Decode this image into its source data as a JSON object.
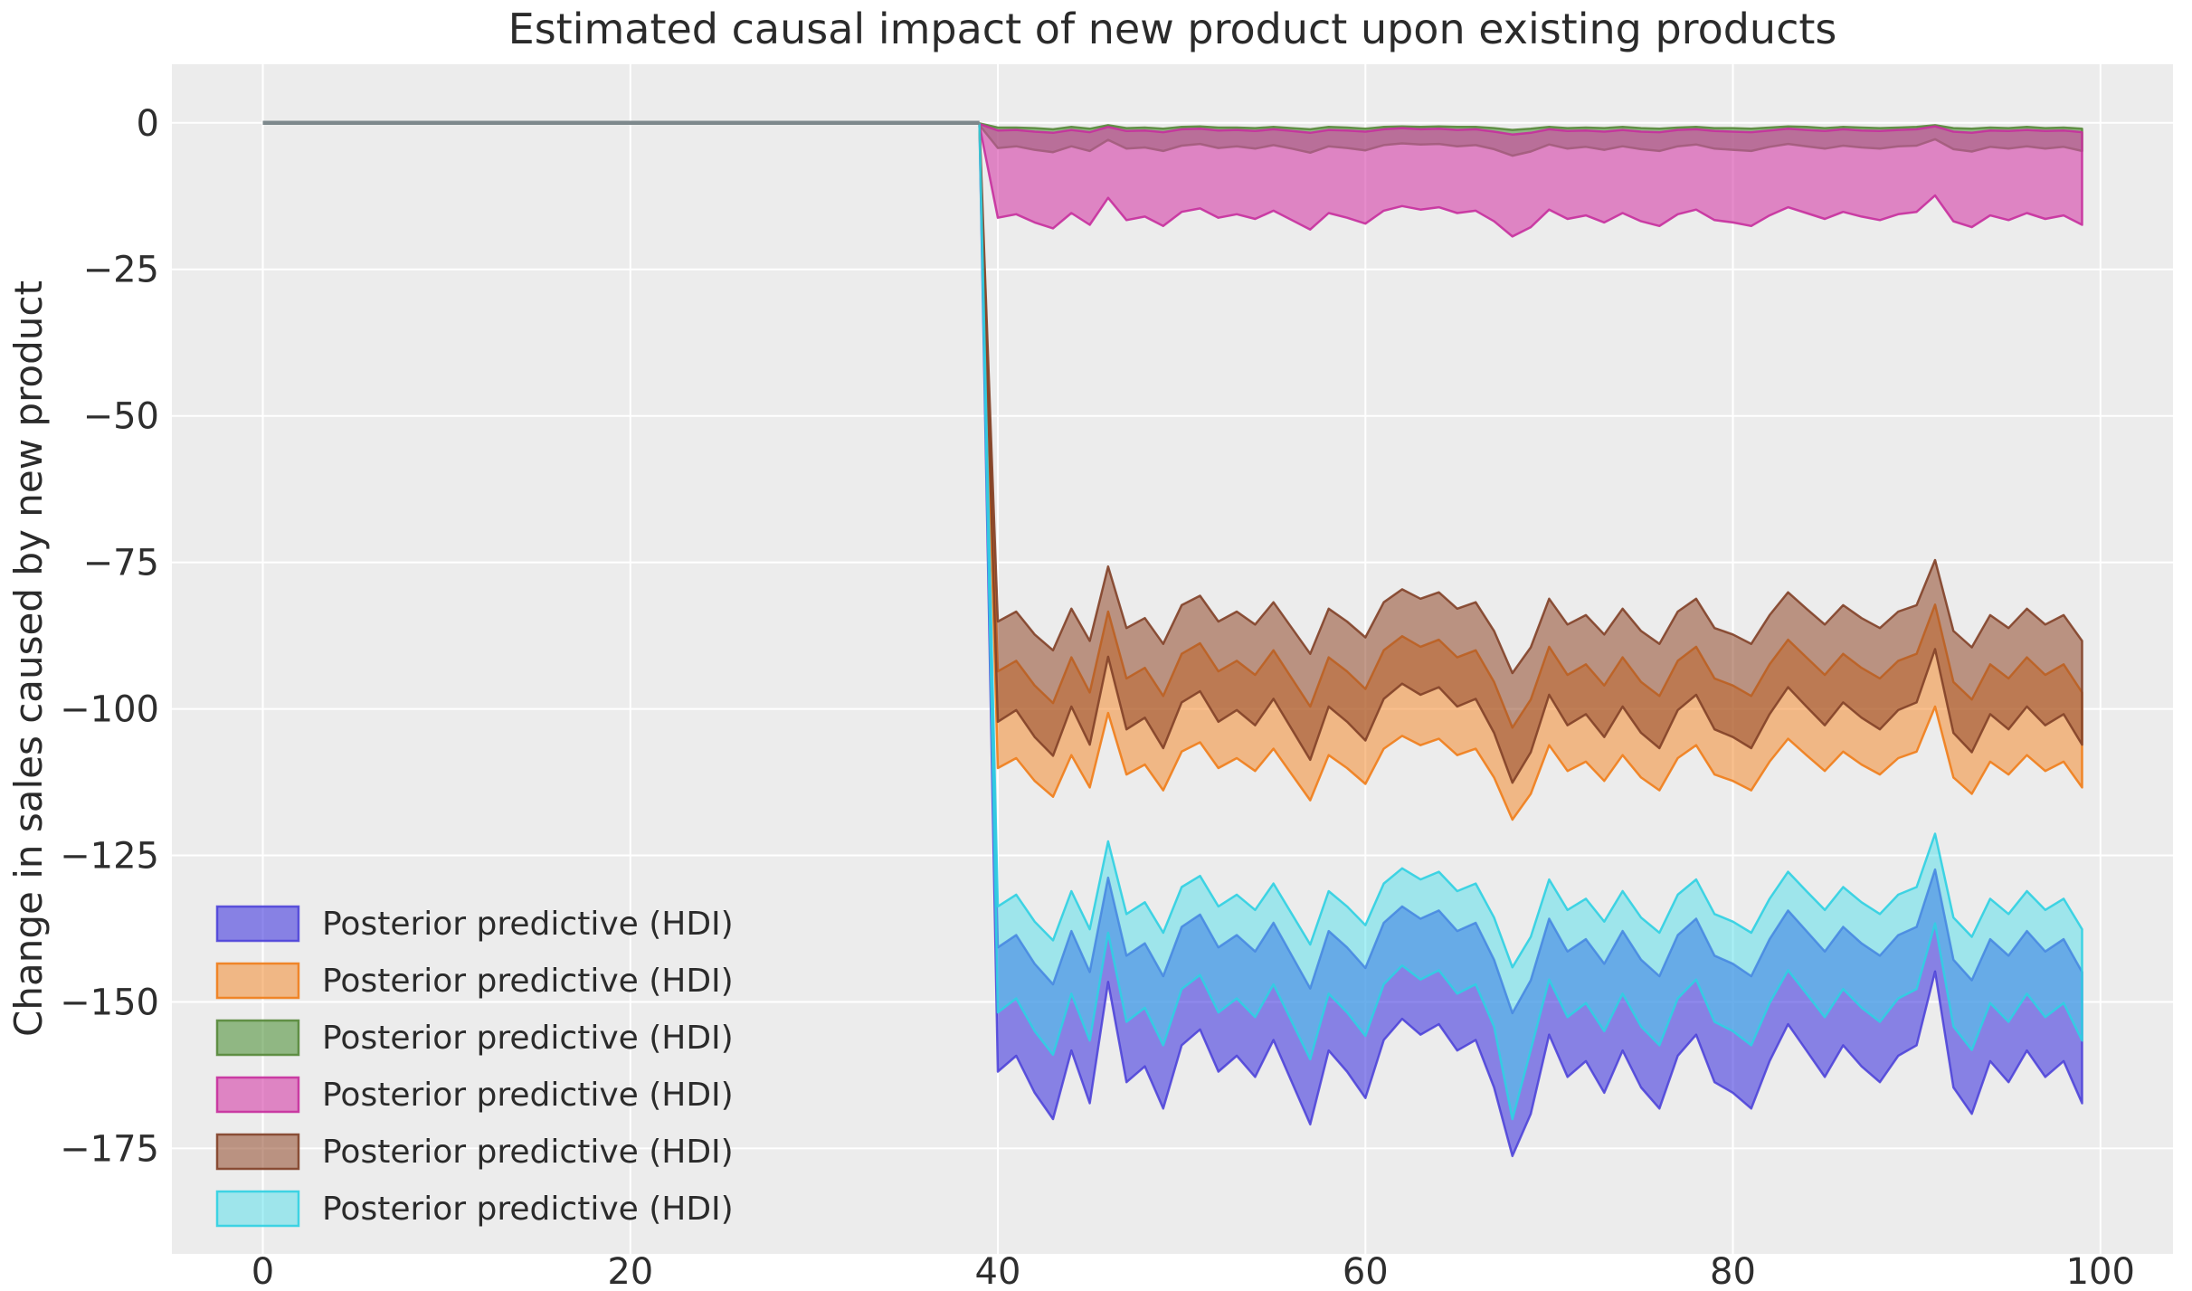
{
  "figure": {
    "background": "#ffffff",
    "axes_background": "#ececec",
    "grid_color": "#ffffff",
    "title_color": "#2b2b2b",
    "tick_color": "#2e2e2e"
  },
  "chart_data": {
    "type": "area",
    "title": "Estimated causal impact of new product upon existing products",
    "xlabel": "",
    "ylabel": "Change in sales caused by new product",
    "xlim": [
      -4.95,
      103.95
    ],
    "ylim": [
      -193,
      10
    ],
    "grid": true,
    "legend_position": "lower-left",
    "xticks": [
      0,
      20,
      40,
      60,
      80,
      100
    ],
    "xtick_labels": [
      "0",
      "20",
      "40",
      "60",
      "80",
      "100"
    ],
    "yticks": [
      0,
      -25,
      -50,
      -75,
      -100,
      -125,
      -150,
      -175
    ],
    "ytick_labels": [
      "0",
      "−25",
      "−50",
      "−75",
      "−100",
      "−125",
      "−150",
      "−175"
    ],
    "pre_period_line": {
      "x_start": 0,
      "x_end": 39,
      "y": 0,
      "color": "#7d888c",
      "width": 4.5
    },
    "treatment_index": 39,
    "x": [
      40,
      41,
      42,
      43,
      44,
      45,
      46,
      47,
      48,
      49,
      50,
      51,
      52,
      53,
      54,
      55,
      56,
      57,
      58,
      59,
      60,
      61,
      62,
      63,
      64,
      65,
      66,
      67,
      68,
      69,
      70,
      71,
      72,
      73,
      74,
      75,
      76,
      77,
      78,
      79,
      80,
      81,
      82,
      83,
      84,
      85,
      86,
      87,
      88,
      89,
      90,
      91,
      92,
      93,
      94,
      95,
      96,
      97,
      98,
      99
    ],
    "series": [
      {
        "name": "Posterior predictive (HDI)",
        "color_key": "purple",
        "fill": "rgba(68,58,223,0.60)",
        "edge": "rgba(73,62,216,0.85)",
        "pre_junction": {
          "x": 39,
          "upper": -0.2,
          "lower": -0.6
        },
        "upper": [
          -140.7,
          -138.6,
          -143.5,
          -147,
          -137.9,
          -144.9,
          -128.8,
          -142.1,
          -140,
          -145.6,
          -137.2,
          -135.1,
          -140.7,
          -138.6,
          -141.4,
          -136.5,
          -142.1,
          -147.7,
          -137.9,
          -140.7,
          -144.2,
          -136.5,
          -133.7,
          -135.8,
          -134.4,
          -137.9,
          -136.5,
          -142.8,
          -151.9,
          -146.3,
          -135.8,
          -141.4,
          -139.3,
          -143.5,
          -137.9,
          -142.8,
          -145.6,
          -138.6,
          -135.8,
          -142.1,
          -143.5,
          -145.6,
          -139.3,
          -134.4,
          -137.9,
          -141.4,
          -137.2,
          -140,
          -142.1,
          -138.6,
          -137.2,
          -127.4,
          -142.8,
          -146.3,
          -139.3,
          -142.1,
          -137.9,
          -141.4,
          -139.3,
          -144.9
        ],
        "lower": [
          -161.9,
          -159.2,
          -165.5,
          -170,
          -158.3,
          -167.3,
          -146.6,
          -163.7,
          -161,
          -168.2,
          -157.4,
          -154.7,
          -161.9,
          -159.2,
          -162.8,
          -156.5,
          -163.7,
          -170.9,
          -158.3,
          -161.9,
          -166.4,
          -156.5,
          -152.9,
          -155.6,
          -153.8,
          -158.3,
          -156.5,
          -164.6,
          -176.3,
          -169.1,
          -155.6,
          -162.8,
          -160.1,
          -165.5,
          -158.3,
          -164.6,
          -168.2,
          -159.2,
          -155.6,
          -163.7,
          -165.5,
          -168.2,
          -160.1,
          -153.8,
          -158.3,
          -162.8,
          -157.4,
          -161,
          -163.7,
          -159.2,
          -157.4,
          -144.8,
          -164.6,
          -169.1,
          -160.1,
          -163.7,
          -158.3,
          -162.8,
          -160.1,
          -167.3
        ]
      },
      {
        "name": "Posterior predictive (HDI)",
        "color_key": "orange",
        "fill": "rgba(244,130,30,0.50)",
        "edge": "rgba(240,125,26,0.90)",
        "pre_junction": {
          "x": 39,
          "upper": -0.2,
          "lower": -0.6
        },
        "upper": [
          -93.6,
          -91.8,
          -96,
          -99,
          -91.2,
          -97.2,
          -83.4,
          -94.8,
          -93,
          -97.8,
          -90.6,
          -88.8,
          -93.6,
          -91.8,
          -94.2,
          -90,
          -94.8,
          -99.6,
          -91.2,
          -93.6,
          -96.6,
          -90,
          -87.6,
          -89.4,
          -88.2,
          -91.2,
          -90,
          -95.4,
          -103.2,
          -98.4,
          -89.4,
          -94.2,
          -92.4,
          -96,
          -91.2,
          -95.4,
          -97.8,
          -91.8,
          -89.4,
          -94.8,
          -96,
          -97.8,
          -92.4,
          -88.2,
          -91.2,
          -94.2,
          -90.6,
          -93,
          -94.8,
          -91.8,
          -90.6,
          -82.2,
          -95.4,
          -98.4,
          -92.4,
          -94.8,
          -91.2,
          -94.2,
          -92.4,
          -97.2
        ],
        "lower": [
          -110.1,
          -108.4,
          -112.3,
          -115,
          -107.9,
          -113.4,
          -100.7,
          -111.2,
          -109.5,
          -113.9,
          -107.3,
          -105.7,
          -110.1,
          -108.4,
          -110.6,
          -106.8,
          -111.2,
          -115.6,
          -107.9,
          -110.1,
          -112.8,
          -106.8,
          -104.6,
          -106.2,
          -105.1,
          -107.9,
          -106.8,
          -111.7,
          -118.9,
          -114.5,
          -106.2,
          -110.6,
          -109,
          -112.3,
          -107.9,
          -111.7,
          -113.9,
          -108.4,
          -106.2,
          -111.2,
          -112.3,
          -113.9,
          -109,
          -105.1,
          -107.9,
          -110.6,
          -107.3,
          -109.5,
          -111.2,
          -108.4,
          -107.3,
          -99.6,
          -111.7,
          -114.5,
          -109,
          -111.2,
          -107.9,
          -110.6,
          -109,
          -113.4
        ]
      },
      {
        "name": "Posterior predictive (HDI)",
        "color_key": "green",
        "fill": "rgba(70,140,45,0.55)",
        "edge": "rgba(86,136,58,0.90)",
        "pre_junction": {
          "x": 39,
          "upper": -0.1,
          "lower": -0.4
        },
        "upper": [
          -0.8,
          -0.8,
          -0.9,
          -1.1,
          -0.7,
          -1,
          -0.4,
          -0.9,
          -0.8,
          -1,
          -0.7,
          -0.6,
          -0.8,
          -0.8,
          -0.9,
          -0.7,
          -0.9,
          -1.1,
          -0.7,
          -0.8,
          -1,
          -0.7,
          -0.6,
          -0.7,
          -0.6,
          -0.7,
          -0.7,
          -0.9,
          -1.2,
          -1,
          -0.7,
          -0.9,
          -0.8,
          -0.9,
          -0.7,
          -0.9,
          -1,
          -0.8,
          -0.7,
          -0.9,
          -0.9,
          -1,
          -0.8,
          -0.6,
          -0.7,
          -0.9,
          -0.7,
          -0.8,
          -0.9,
          -0.8,
          -0.7,
          -0.4,
          -0.9,
          -1,
          -0.8,
          -0.9,
          -0.7,
          -0.9,
          -0.8,
          -1
        ],
        "lower": [
          -4.3,
          -4,
          -4.6,
          -5,
          -4,
          -4.8,
          -2.9,
          -4.4,
          -4.2,
          -4.8,
          -3.9,
          -3.6,
          -4.3,
          -4,
          -4.4,
          -3.8,
          -4.4,
          -5.1,
          -4,
          -4.3,
          -4.7,
          -3.8,
          -3.5,
          -3.7,
          -3.6,
          -4,
          -3.8,
          -4.5,
          -5.6,
          -4.9,
          -3.7,
          -4.4,
          -4.1,
          -4.6,
          -4,
          -4.5,
          -4.8,
          -4,
          -3.7,
          -4.4,
          -4.6,
          -4.8,
          -4.1,
          -3.6,
          -4,
          -4.4,
          -3.9,
          -4.2,
          -4.4,
          -4,
          -3.9,
          -2.8,
          -4.5,
          -4.9,
          -4.1,
          -4.4,
          -4,
          -4.4,
          -4.1,
          -4.8
        ]
      },
      {
        "name": "Posterior predictive (HDI)",
        "color_key": "pink",
        "fill": "rgba(214,64,168,0.60)",
        "edge": "rgba(199,47,157,0.90)",
        "pre_junction": {
          "x": 39,
          "upper": -0.2,
          "lower": -0.5
        },
        "upper": [
          -1.3,
          -1.2,
          -1.5,
          -1.7,
          -1.2,
          -1.6,
          -0.7,
          -1.4,
          -1.3,
          -1.6,
          -1.1,
          -1,
          -1.3,
          -1.2,
          -1.4,
          -1.1,
          -1.4,
          -1.7,
          -1.2,
          -1.3,
          -1.5,
          -1.1,
          -0.9,
          -1.1,
          -1,
          -1.2,
          -1.1,
          -1.5,
          -2,
          -1.7,
          -1.1,
          -1.4,
          -1.3,
          -1.5,
          -1.2,
          -1.5,
          -1.6,
          -1.2,
          -1.1,
          -1.4,
          -1.5,
          -1.6,
          -1.3,
          -1,
          -1.2,
          -1.4,
          -1.1,
          -1.3,
          -1.4,
          -1.2,
          -1.1,
          -0.6,
          -1.5,
          -1.7,
          -1.3,
          -1.4,
          -1.2,
          -1.4,
          -1.3,
          -1.6
        ],
        "lower": [
          -16.2,
          -15.6,
          -17,
          -18,
          -15.4,
          -17.4,
          -12.8,
          -16.6,
          -16,
          -17.6,
          -15.2,
          -14.6,
          -16.2,
          -15.6,
          -16.4,
          -15,
          -16.6,
          -18.2,
          -15.4,
          -16.2,
          -17.2,
          -15,
          -14.2,
          -14.8,
          -14.4,
          -15.4,
          -15,
          -16.8,
          -19.4,
          -17.8,
          -14.8,
          -16.4,
          -15.8,
          -17,
          -15.4,
          -16.8,
          -17.6,
          -15.6,
          -14.8,
          -16.6,
          -17,
          -17.6,
          -15.8,
          -14.4,
          -15.4,
          -16.4,
          -15.2,
          -16,
          -16.6,
          -15.6,
          -15.2,
          -12.4,
          -16.8,
          -17.8,
          -15.8,
          -16.6,
          -15.4,
          -16.4,
          -15.8,
          -17.4
        ]
      },
      {
        "name": "Posterior predictive (HDI)",
        "color_key": "brown",
        "fill": "rgba(146,73,42,0.55)",
        "edge": "rgba(130,65,40,0.90)",
        "pre_junction": {
          "x": 39,
          "upper": -0.2,
          "lower": -0.6
        },
        "upper": [
          -85.1,
          -83.4,
          -87.3,
          -90,
          -82.9,
          -88.4,
          -75.7,
          -86.2,
          -84.5,
          -88.9,
          -82.3,
          -80.7,
          -85.1,
          -83.4,
          -85.6,
          -81.8,
          -86.2,
          -90.6,
          -82.9,
          -85.1,
          -87.8,
          -81.8,
          -79.6,
          -81.2,
          -80.1,
          -82.9,
          -81.8,
          -86.7,
          -93.9,
          -89.5,
          -81.2,
          -85.6,
          -84,
          -87.3,
          -82.9,
          -86.7,
          -88.9,
          -83.4,
          -81.2,
          -86.2,
          -87.3,
          -88.9,
          -84,
          -80.1,
          -82.9,
          -85.6,
          -82.3,
          -84.5,
          -86.2,
          -83.4,
          -82.3,
          -74.6,
          -86.7,
          -89.5,
          -84,
          -86.2,
          -82.9,
          -85.6,
          -84,
          -88.4
        ],
        "lower": [
          -102.2,
          -100.2,
          -104.8,
          -108,
          -99.6,
          -106.1,
          -91.1,
          -103.5,
          -101.5,
          -106.7,
          -98.9,
          -97,
          -102.2,
          -100.2,
          -102.8,
          -98.3,
          -103.5,
          -108.7,
          -99.6,
          -102.2,
          -105.4,
          -98.3,
          -95.7,
          -97.6,
          -96.3,
          -99.6,
          -98.3,
          -104.1,
          -112.6,
          -107.4,
          -97.6,
          -102.8,
          -100.9,
          -104.8,
          -99.6,
          -104.1,
          -106.7,
          -100.2,
          -97.6,
          -103.5,
          -104.8,
          -106.7,
          -100.9,
          -96.3,
          -99.6,
          -102.8,
          -98.9,
          -101.5,
          -103.5,
          -100.2,
          -98.9,
          -89.8,
          -104.1,
          -107.4,
          -100.9,
          -103.5,
          -99.6,
          -102.8,
          -100.9,
          -106.1
        ]
      },
      {
        "name": "Posterior predictive (HDI)",
        "color_key": "cyan",
        "fill": "rgba(64,222,235,0.45)",
        "edge": "rgba(47,208,226,0.90)",
        "pre_junction": {
          "x": 39,
          "upper": -0.2,
          "lower": -0.6
        },
        "upper": [
          -133.7,
          -131.7,
          -136.3,
          -139.5,
          -131.1,
          -137.6,
          -122.6,
          -135,
          -133,
          -138.2,
          -130.4,
          -128.5,
          -133.7,
          -131.7,
          -134.3,
          -129.8,
          -135,
          -140.2,
          -131.1,
          -133.7,
          -136.9,
          -129.8,
          -127.2,
          -129.1,
          -127.8,
          -131.1,
          -129.8,
          -135.6,
          -144.1,
          -138.9,
          -129.1,
          -134.3,
          -132.4,
          -136.3,
          -131.1,
          -135.6,
          -138.2,
          -131.7,
          -129.1,
          -135,
          -136.3,
          -138.2,
          -132.4,
          -127.8,
          -131.1,
          -134.3,
          -130.4,
          -133,
          -135,
          -131.7,
          -130.4,
          -121.3,
          -135.6,
          -138.9,
          -132.4,
          -135,
          -131.1,
          -134.3,
          -132.4,
          -137.6
        ],
        "lower": [
          -151.8,
          -149.4,
          -155,
          -159,
          -148.6,
          -156.6,
          -138.2,
          -153.4,
          -151,
          -157.4,
          -147.8,
          -145.4,
          -151.8,
          -149.4,
          -152.6,
          -147,
          -153.4,
          -159.8,
          -148.6,
          -151.8,
          -155.8,
          -147,
          -143.8,
          -146.2,
          -144.6,
          -148.6,
          -147,
          -154.2,
          -170,
          -158.2,
          -146.2,
          -152.6,
          -150.2,
          -155,
          -148.6,
          -154.2,
          -157.4,
          -149.4,
          -146.2,
          -153.4,
          -155,
          -157.4,
          -150.2,
          -144.6,
          -148.6,
          -152.6,
          -147.8,
          -151,
          -153.4,
          -149.4,
          -147.8,
          -136.6,
          -154.2,
          -158.2,
          -150.2,
          -153.4,
          -148.6,
          -152.6,
          -150.2,
          -156.6
        ]
      }
    ]
  },
  "legend": {
    "entries": [
      {
        "label": "Posterior predictive (HDI)",
        "fill": "rgba(68,58,223,0.60)",
        "edge": "rgba(73,62,216,0.85)"
      },
      {
        "label": "Posterior predictive (HDI)",
        "fill": "rgba(244,130,30,0.50)",
        "edge": "rgba(240,125,26,0.90)"
      },
      {
        "label": "Posterior predictive (HDI)",
        "fill": "rgba(70,140,45,0.55)",
        "edge": "rgba(86,136,58,0.90)"
      },
      {
        "label": "Posterior predictive (HDI)",
        "fill": "rgba(214,64,168,0.60)",
        "edge": "rgba(199,47,157,0.90)"
      },
      {
        "label": "Posterior predictive (HDI)",
        "fill": "rgba(146,73,42,0.55)",
        "edge": "rgba(130,65,40,0.90)"
      },
      {
        "label": "Posterior predictive (HDI)",
        "fill": "rgba(64,222,235,0.45)",
        "edge": "rgba(47,208,226,0.90)"
      }
    ]
  }
}
